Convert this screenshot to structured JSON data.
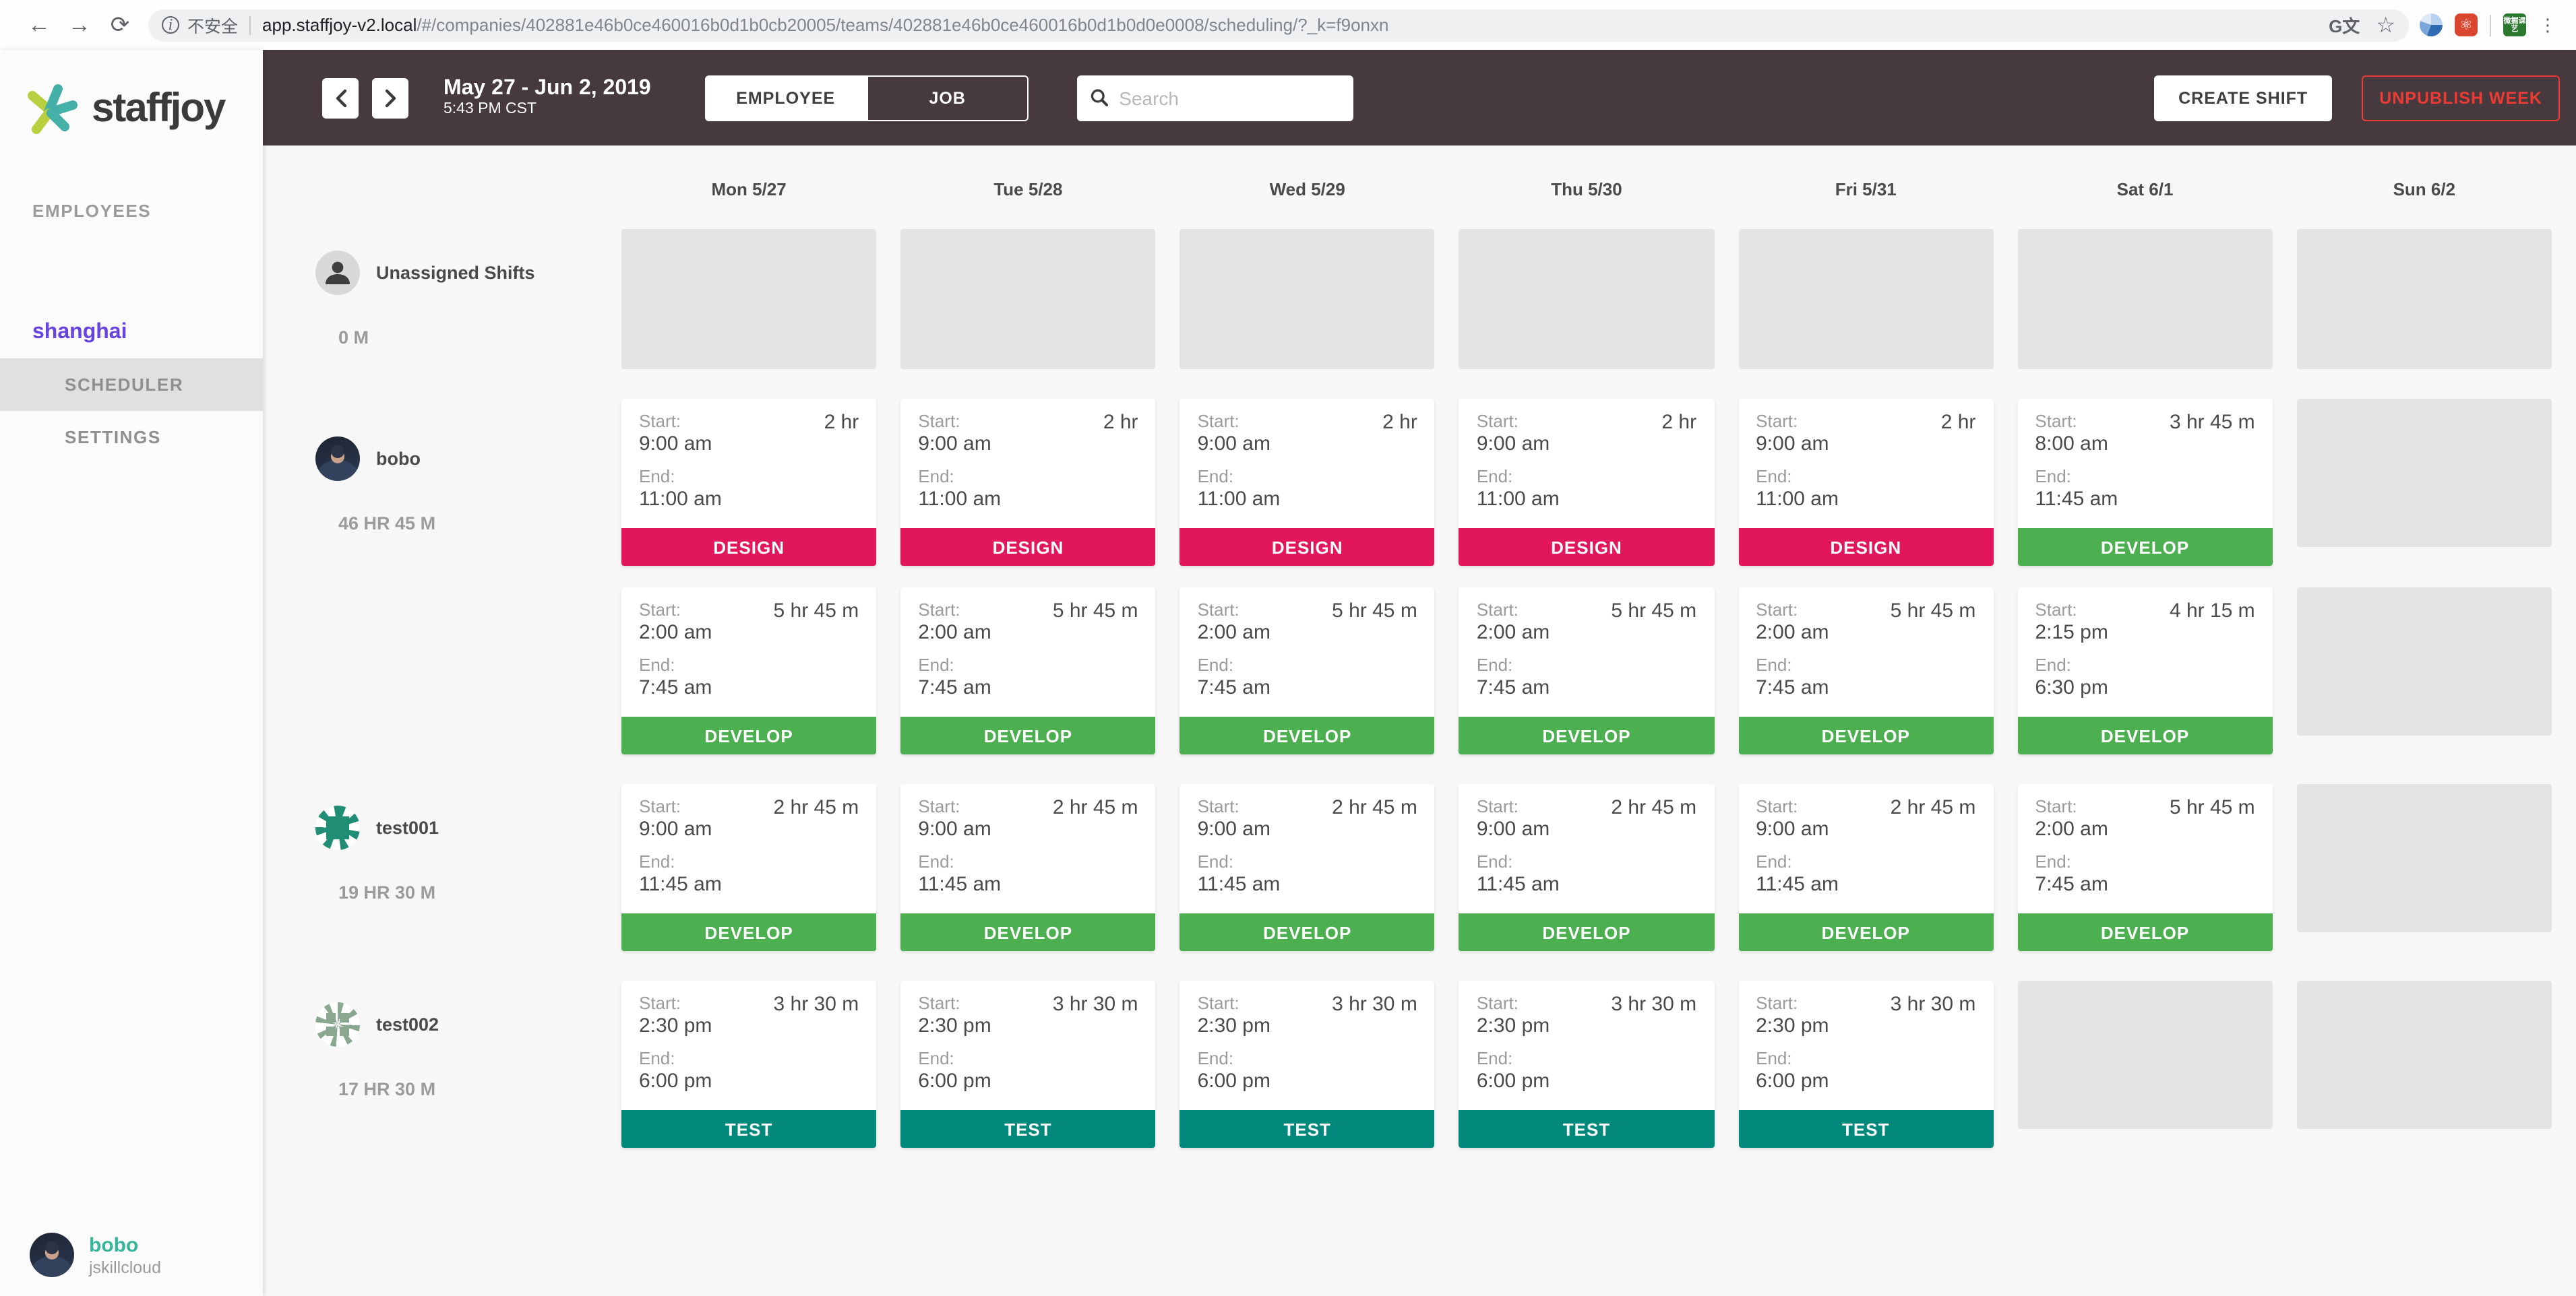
{
  "browser": {
    "security_label": "不安全",
    "url_host": "app.staffjoy-v2.local",
    "url_path": "/#/companies/402881e46b0ce460016b0d1b0cb20005/teams/402881e46b0ce460016b0d1b0d0e0008/scheduling/?_k=f9onxn",
    "extension_badge_text": "微掘课艺",
    "ext_red_glyph": "⚛"
  },
  "sidebar": {
    "logo_text": "staffjoy",
    "employees_label": "EMPLOYEES",
    "team_label": "shanghai",
    "scheduler_label": "SCHEDULER",
    "settings_label": "SETTINGS",
    "user": {
      "name": "bobo",
      "company": "jskillcloud"
    }
  },
  "toolbar": {
    "week_label": "May 27 - Jun 2, 2019",
    "time_label": "5:43 PM CST",
    "view_toggle": [
      {
        "label": "EMPLOYEE",
        "active": true
      },
      {
        "label": "JOB",
        "active": false
      }
    ],
    "search_placeholder": "Search",
    "create_shift_label": "CREATE SHIFT",
    "unpublish_label": "UNPUBLISH WEEK"
  },
  "colors": {
    "topbar": "#463a3f",
    "accent_purple": "#6744e0",
    "accent_teal": "#35b59a",
    "danger_red": "#ef3a34",
    "jobs": {
      "DESIGN": "#e2175b",
      "DEVELOP": "#4caf50",
      "TEST": "#00897b"
    }
  },
  "schedule": {
    "days": [
      "Mon 5/27",
      "Tue 5/28",
      "Wed 5/29",
      "Thu 5/30",
      "Fri 5/31",
      "Sat 6/1",
      "Sun 6/2"
    ],
    "card_labels": {
      "start": "Start:",
      "end": "End:"
    },
    "rows": [
      {
        "name": "Unassigned Shifts",
        "hours": "0 M",
        "avatar": "unassigned",
        "shift_rows": [
          {
            "cells": [
              {
                "empty": true
              },
              {
                "empty": true
              },
              {
                "empty": true
              },
              {
                "empty": true
              },
              {
                "empty": true
              },
              {
                "empty": true
              },
              {
                "empty": true
              }
            ]
          }
        ]
      },
      {
        "name": "bobo",
        "hours": "46 HR 45 M",
        "avatar": "photo",
        "shift_rows": [
          {
            "cells": [
              {
                "start": "9:00 am",
                "end": "11:00 am",
                "duration": "2 hr",
                "job": "DESIGN"
              },
              {
                "start": "9:00 am",
                "end": "11:00 am",
                "duration": "2 hr",
                "job": "DESIGN"
              },
              {
                "start": "9:00 am",
                "end": "11:00 am",
                "duration": "2 hr",
                "job": "DESIGN"
              },
              {
                "start": "9:00 am",
                "end": "11:00 am",
                "duration": "2 hr",
                "job": "DESIGN"
              },
              {
                "start": "9:00 am",
                "end": "11:00 am",
                "duration": "2 hr",
                "job": "DESIGN"
              },
              {
                "start": "8:00 am",
                "end": "11:45 am",
                "duration": "3 hr 45 m",
                "job": "DEVELOP"
              },
              {
                "empty": true
              }
            ]
          },
          {
            "cells": [
              {
                "start": "2:00 am",
                "end": "7:45 am",
                "duration": "5 hr 45 m",
                "job": "DEVELOP"
              },
              {
                "start": "2:00 am",
                "end": "7:45 am",
                "duration": "5 hr 45 m",
                "job": "DEVELOP"
              },
              {
                "start": "2:00 am",
                "end": "7:45 am",
                "duration": "5 hr 45 m",
                "job": "DEVELOP"
              },
              {
                "start": "2:00 am",
                "end": "7:45 am",
                "duration": "5 hr 45 m",
                "job": "DEVELOP"
              },
              {
                "start": "2:00 am",
                "end": "7:45 am",
                "duration": "5 hr 45 m",
                "job": "DEVELOP"
              },
              {
                "start": "2:15 pm",
                "end": "6:30 pm",
                "duration": "4 hr 15 m",
                "job": "DEVELOP"
              },
              {
                "empty": true
              }
            ]
          }
        ]
      },
      {
        "name": "test001",
        "hours": "19 HR 30 M",
        "avatar": "identicon1",
        "shift_rows": [
          {
            "cells": [
              {
                "start": "9:00 am",
                "end": "11:45 am",
                "duration": "2 hr 45 m",
                "job": "DEVELOP"
              },
              {
                "start": "9:00 am",
                "end": "11:45 am",
                "duration": "2 hr 45 m",
                "job": "DEVELOP"
              },
              {
                "start": "9:00 am",
                "end": "11:45 am",
                "duration": "2 hr 45 m",
                "job": "DEVELOP"
              },
              {
                "start": "9:00 am",
                "end": "11:45 am",
                "duration": "2 hr 45 m",
                "job": "DEVELOP"
              },
              {
                "start": "9:00 am",
                "end": "11:45 am",
                "duration": "2 hr 45 m",
                "job": "DEVELOP"
              },
              {
                "start": "2:00 am",
                "end": "7:45 am",
                "duration": "5 hr 45 m",
                "job": "DEVELOP"
              },
              {
                "empty": true
              }
            ]
          }
        ]
      },
      {
        "name": "test002",
        "hours": "17 HR 30 M",
        "avatar": "identicon2",
        "shift_rows": [
          {
            "cells": [
              {
                "start": "2:30 pm",
                "end": "6:00 pm",
                "duration": "3 hr 30 m",
                "job": "TEST"
              },
              {
                "start": "2:30 pm",
                "end": "6:00 pm",
                "duration": "3 hr 30 m",
                "job": "TEST"
              },
              {
                "start": "2:30 pm",
                "end": "6:00 pm",
                "duration": "3 hr 30 m",
                "job": "TEST"
              },
              {
                "start": "2:30 pm",
                "end": "6:00 pm",
                "duration": "3 hr 30 m",
                "job": "TEST"
              },
              {
                "start": "2:30 pm",
                "end": "6:00 pm",
                "duration": "3 hr 30 m",
                "job": "TEST"
              },
              {
                "empty": true
              },
              {
                "empty": true
              }
            ]
          }
        ]
      }
    ]
  }
}
